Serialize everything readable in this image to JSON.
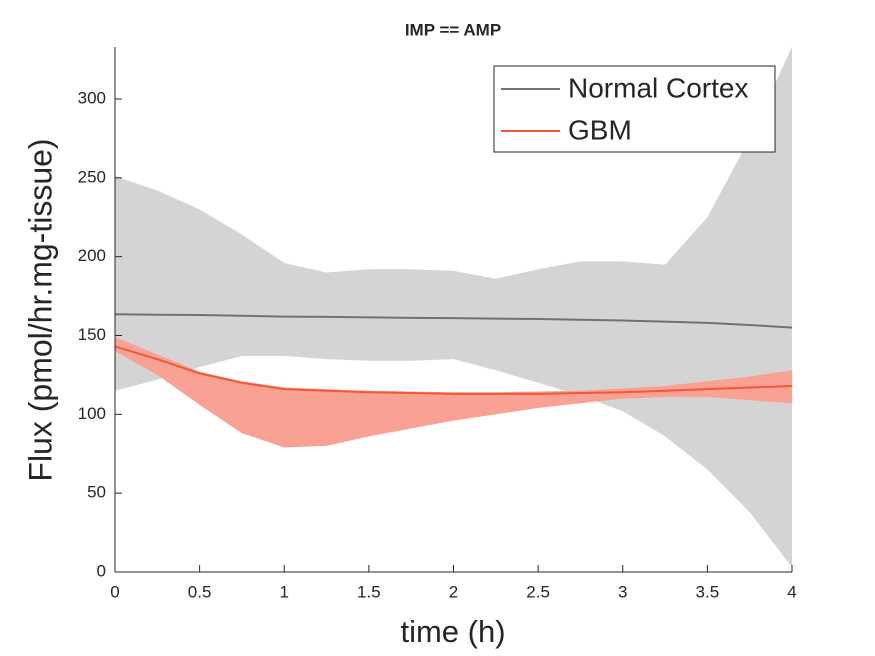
{
  "chart_data": {
    "type": "line",
    "title": "IMP == AMP",
    "xlabel": "time (h)",
    "ylabel": "Flux (pmol/hr.mg-tissue)",
    "x": [
      0,
      0.25,
      0.5,
      0.75,
      1,
      1.25,
      1.5,
      1.75,
      2,
      2.25,
      2.5,
      2.75,
      3,
      3.25,
      3.5,
      3.75,
      4
    ],
    "series": [
      {
        "name": "Normal Cortex",
        "color": "#6e7371",
        "band_color": "#d4d4d4",
        "values": [
          163.5,
          163.2,
          163,
          162.5,
          162,
          161.8,
          161.5,
          161.2,
          161,
          160.7,
          160.5,
          160,
          159.5,
          158.8,
          158,
          156.7,
          155
        ],
        "upper": [
          251,
          242,
          230,
          214,
          196,
          190,
          192,
          192,
          191,
          186,
          192,
          197,
          197,
          195,
          225,
          275,
          333
        ],
        "lower": [
          115,
          122,
          130,
          137,
          137,
          135,
          134,
          134,
          135,
          128,
          120,
          112,
          102,
          86,
          65,
          38,
          3
        ]
      },
      {
        "name": "GBM",
        "color": "#f0583a",
        "band_color": "#f9a293",
        "values": [
          143,
          135,
          126,
          120,
          116,
          115,
          114,
          113.5,
          113,
          113,
          113,
          113.5,
          114,
          115,
          116,
          117,
          118
        ],
        "upper": [
          149,
          138,
          127,
          121,
          117,
          116,
          115,
          114.5,
          114,
          114,
          114.5,
          115,
          116.5,
          118,
          121,
          124,
          128
        ],
        "lower": [
          140,
          125,
          106,
          88,
          79,
          80,
          86,
          91,
          96,
          100,
          104,
          107,
          110,
          111,
          111,
          109,
          107
        ]
      }
    ],
    "xlim": [
      0,
      4
    ],
    "xticks": [
      0,
      0.5,
      1,
      1.5,
      2,
      2.5,
      3,
      3.5,
      4
    ],
    "ylim": [
      0,
      333
    ],
    "yticks": [
      0,
      50,
      100,
      150,
      200,
      250,
      300
    ],
    "legend": "top-right"
  }
}
